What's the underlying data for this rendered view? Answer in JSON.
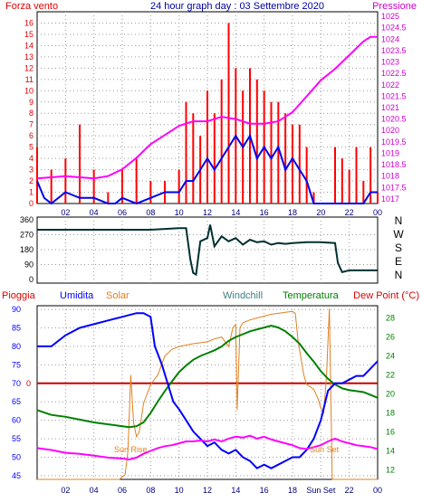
{
  "chart_data": [
    {
      "id": "wind",
      "type": "bar",
      "title": "24 hour graph day : 03 Settembre 2020",
      "x_label_hours": [
        "02",
        "04",
        "06",
        "08",
        "10",
        "12",
        "14",
        "16",
        "18",
        "20",
        "22",
        "00"
      ],
      "xlim": [
        0,
        24
      ],
      "y_left": {
        "label": "Forza vento",
        "ticks": [
          0,
          1,
          2,
          3,
          4,
          5,
          6,
          7,
          8,
          9,
          10,
          11,
          12,
          13,
          14,
          15,
          16
        ],
        "lim": [
          0,
          17
        ],
        "color": "#e00000"
      },
      "y_right": {
        "label": "Pressione",
        "ticks": [
          "1017",
          "1017.5",
          "1018",
          "1018.5",
          "1019",
          "1019.5",
          "1020",
          "1020.5",
          "1021",
          "1021.5",
          "1022",
          "1022.5",
          "1023",
          "1023.5",
          "1024",
          "1024.5",
          "1025"
        ],
        "lim": [
          1016.8,
          1025.2
        ],
        "color": "#cc00cc"
      },
      "grid": true,
      "series": [
        {
          "name": "gust",
          "kind": "bar",
          "color": "#ff0000",
          "x": [
            0,
            1,
            2,
            3,
            4,
            5,
            6,
            7,
            8,
            9,
            10,
            10.5,
            11,
            11.5,
            12,
            12.5,
            13,
            13.5,
            14,
            14.5,
            15,
            15.5,
            16,
            16.5,
            17,
            17.5,
            18,
            18.5,
            19,
            19.5,
            20,
            20.5,
            21,
            21.5,
            22,
            22.5,
            23,
            23.5,
            24
          ],
          "values": [
            5,
            3,
            4,
            7,
            3,
            1,
            3,
            4,
            2,
            2,
            3,
            9,
            8,
            6,
            10,
            8,
            11,
            16,
            12,
            10,
            12,
            11,
            10,
            9,
            9,
            8,
            7,
            7,
            5,
            1,
            0,
            0,
            5,
            4,
            3,
            5,
            2,
            5,
            1
          ]
        },
        {
          "name": "wind",
          "kind": "line",
          "color": "#0000ee",
          "x": [
            0,
            0.5,
            1,
            2,
            3,
            4,
            5,
            5.5,
            6,
            7,
            8,
            9,
            10,
            10.5,
            11,
            11.5,
            12,
            12.5,
            13,
            13.5,
            14,
            14.5,
            15,
            15.5,
            16,
            16.5,
            17,
            17.5,
            18,
            18.5,
            19,
            19.5,
            20,
            20.5,
            21,
            22,
            23,
            23.5,
            24
          ],
          "values": [
            2,
            0.5,
            0,
            1,
            0.5,
            0.5,
            0,
            0,
            0.5,
            0,
            0.5,
            1,
            1,
            2,
            2,
            3,
            4,
            3,
            4,
            5,
            6,
            5,
            6,
            4,
            5,
            4,
            5,
            3,
            4,
            3,
            2,
            0,
            0,
            0,
            0,
            0,
            0,
            1,
            1
          ]
        },
        {
          "name": "pressure",
          "kind": "line",
          "color": "#ff00ff",
          "x": [
            0,
            2,
            4,
            5,
            6,
            7,
            8,
            9,
            10,
            11,
            12,
            13,
            14,
            15,
            16,
            17,
            18,
            19,
            20,
            21,
            22,
            23,
            23.5,
            24
          ],
          "values": [
            1017.9,
            1018.0,
            1017.9,
            1018.0,
            1018.3,
            1018.8,
            1019.4,
            1019.8,
            1020.2,
            1020.4,
            1020.4,
            1020.6,
            1020.5,
            1020.3,
            1020.3,
            1020.4,
            1020.8,
            1021.5,
            1022.2,
            1022.7,
            1023.3,
            1023.9,
            1024.1,
            1024.1
          ]
        }
      ]
    },
    {
      "id": "direction",
      "type": "line",
      "x_label_hours": [
        "02",
        "04",
        "06",
        "08",
        "10",
        "12",
        "14",
        "16",
        "18",
        "20",
        "22",
        "00"
      ],
      "xlim": [
        0,
        24
      ],
      "y_left_ticks": [
        0,
        90,
        180,
        270,
        360
      ],
      "y_right_ticks": [
        "N",
        "W",
        "S",
        "E",
        "N"
      ],
      "ylim": [
        0,
        360
      ],
      "grid": true,
      "series": [
        {
          "name": "direction",
          "color": "#003030",
          "x": [
            0,
            1,
            2,
            3,
            4,
            5,
            6,
            7,
            8,
            9,
            10,
            10.5,
            10.8,
            11,
            11.2,
            11.5,
            12,
            12.2,
            12.5,
            13,
            13.5,
            14,
            14.5,
            15,
            15.5,
            16,
            16.5,
            17,
            17.5,
            18,
            19,
            20,
            21,
            21.2,
            21.5,
            22,
            23,
            24
          ],
          "values": [
            300,
            300,
            300,
            300,
            300,
            300,
            300,
            300,
            300,
            305,
            310,
            310,
            120,
            40,
            30,
            230,
            250,
            330,
            200,
            260,
            230,
            250,
            210,
            240,
            225,
            230,
            210,
            220,
            215,
            220,
            225,
            225,
            220,
            100,
            45,
            55,
            55,
            55
          ]
        }
      ]
    },
    {
      "id": "meteo",
      "type": "line",
      "x_label_hours": [
        "02",
        "04",
        "06",
        "08",
        "10",
        "12",
        "14",
        "16",
        "18",
        "Sun Set",
        "22",
        "00"
      ],
      "xlim": [
        0,
        24
      ],
      "legend": [
        "Pioggia",
        "Umidita",
        "Solar",
        "Windchill",
        "Temperatura",
        "Dew Point (°C)"
      ],
      "y_left": {
        "ticks": [
          45,
          50,
          55,
          60,
          65,
          70,
          75,
          80,
          85,
          90
        ],
        "lim": [
          44,
          91
        ]
      },
      "y_right": {
        "ticks": [
          12,
          14,
          16,
          18,
          20,
          22,
          24,
          26,
          28
        ],
        "lim": [
          11,
          29.3
        ]
      },
      "rain_label": "0",
      "annotations": [
        {
          "text": "Sun Rise",
          "x": 6.7
        },
        {
          "text": "Sun Set",
          "x": 20.5
        }
      ],
      "grid": true,
      "series": [
        {
          "name": "Umidita",
          "axis": "left",
          "color": "#0000ff",
          "x": [
            0,
            0.5,
            1,
            2,
            3,
            4,
            5,
            6,
            7,
            7.5,
            8,
            8.3,
            8.8,
            9.2,
            9.6,
            10,
            10.5,
            11,
            11.5,
            12,
            12.5,
            13,
            13.5,
            14,
            14.5,
            15,
            15.5,
            16,
            16.5,
            17,
            17.5,
            18,
            18.5,
            19,
            19.5,
            20,
            20.5,
            21,
            21.5,
            22,
            22.5,
            23,
            23.5,
            24
          ],
          "values": [
            80,
            80,
            80,
            83,
            85,
            86,
            87,
            88,
            89,
            89,
            88,
            80,
            75,
            70,
            65,
            63,
            60,
            57,
            55,
            53,
            54,
            52,
            51,
            52,
            50,
            49,
            47,
            48,
            47,
            48,
            49,
            50,
            50,
            52,
            55,
            60,
            68,
            70,
            70,
            71,
            72,
            72,
            74,
            76
          ]
        },
        {
          "name": "Temperatura",
          "axis": "right",
          "color": "#008000",
          "x": [
            0,
            1,
            2,
            3,
            4,
            5,
            6,
            6.5,
            7,
            7.5,
            8,
            8.5,
            9,
            9.5,
            10,
            10.5,
            11,
            11.5,
            12,
            12.5,
            13,
            13.5,
            14,
            14.5,
            15,
            15.5,
            16,
            16.5,
            17,
            17.5,
            18,
            18.5,
            19,
            19.5,
            20,
            20.5,
            21,
            21.5,
            22,
            22.5,
            23,
            23.5,
            24
          ],
          "values": [
            18.3,
            17.8,
            17.6,
            17.3,
            17.0,
            16.8,
            16.6,
            16.5,
            16.6,
            17.0,
            18.0,
            19.2,
            20.3,
            21.3,
            22.3,
            23.0,
            23.6,
            24.0,
            24.3,
            24.6,
            25.0,
            25.6,
            26.0,
            26.3,
            26.6,
            26.8,
            27.0,
            27.2,
            27.0,
            26.6,
            26.0,
            25.3,
            24.3,
            23.4,
            22.4,
            21.6,
            21.0,
            20.6,
            20.4,
            20.3,
            20.2,
            19.9,
            19.6
          ]
        },
        {
          "name": "Solar",
          "axis": "right",
          "color": "#e08020",
          "x": [
            0,
            5.8,
            6.2,
            6.4,
            6.6,
            6.8,
            7,
            7.2,
            7.5,
            8,
            8.5,
            9,
            9.5,
            10,
            11,
            12,
            12.5,
            13,
            13.5,
            13.8,
            14,
            14.1,
            14.3,
            14.5,
            15,
            15.5,
            16,
            16.5,
            17,
            17.5,
            18,
            18.2,
            18.4,
            18.8,
            19,
            19.5,
            19.8,
            20,
            20.2,
            20.4,
            20.6,
            20.8,
            21,
            24
          ],
          "values": [
            11,
            11,
            11.5,
            14,
            22,
            17,
            15.5,
            16,
            19,
            21,
            22,
            24,
            24.7,
            25,
            25.3,
            25.5,
            25.8,
            26,
            25,
            27,
            27.3,
            18.3,
            27,
            27.5,
            27.8,
            28,
            28.2,
            28.4,
            28.5,
            28.6,
            28.7,
            28.5,
            25.5,
            22,
            21,
            20.5,
            19.5,
            18.5,
            18.0,
            22.0,
            29.0,
            11,
            11,
            11
          ]
        },
        {
          "name": "Dew Point (°C)",
          "axis": "right",
          "color": "#ff00ff",
          "x": [
            0,
            1,
            2,
            3,
            4,
            5,
            6,
            6.5,
            7,
            7.5,
            8,
            8.5,
            9,
            9.5,
            10,
            10.5,
            11,
            11.5,
            12,
            12.5,
            13,
            13.5,
            14,
            14.5,
            15,
            15.5,
            16,
            16.5,
            17,
            17.5,
            18,
            18.5,
            19,
            19.5,
            20,
            20.5,
            21,
            21.5,
            22,
            22.5,
            23,
            23.5,
            24
          ],
          "values": [
            14.3,
            14.1,
            13.8,
            13.7,
            13.5,
            13.3,
            13.2,
            13.1,
            13.3,
            13.7,
            14.0,
            14.3,
            14.5,
            14.6,
            14.8,
            15.0,
            15.0,
            15.1,
            15.0,
            15.2,
            15.0,
            15.3,
            15.5,
            15.4,
            15.6,
            15.3,
            15.5,
            15.2,
            15.0,
            14.8,
            14.6,
            14.3,
            14.2,
            14.4,
            14.6,
            15.0,
            15.3,
            15.0,
            14.8,
            14.6,
            14.5,
            14.4,
            14.2
          ]
        }
      ]
    }
  ]
}
